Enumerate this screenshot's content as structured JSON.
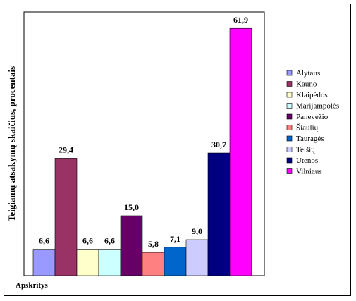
{
  "chart_data": {
    "type": "bar",
    "title": "",
    "ylabel": "Teigiamų atsakymų skaičius, procentais",
    "xlabel": "Apskritys",
    "ylim": [
      0,
      66
    ],
    "grid": false,
    "legend": "right",
    "categories": [
      "Alytaus",
      "Kauno",
      "Klaipėdos",
      "Marijampolės",
      "Panevėžio",
      "Šiaulių",
      "Tauragės",
      "Telšių",
      "Utenos",
      "Vilniaus"
    ],
    "values": [
      6.6,
      29.4,
      6.6,
      6.6,
      15.0,
      5.8,
      7.1,
      9.0,
      30.7,
      61.9
    ],
    "value_labels": [
      "6,6",
      "29,4",
      "6,6",
      "6,6",
      "15,0",
      "5,8",
      "7,1",
      "9,0",
      "30,7",
      "61,9"
    ],
    "colors": [
      "#9999ff",
      "#993366",
      "#ffffcc",
      "#ccffff",
      "#660066",
      "#ff8080",
      "#0066cc",
      "#ccccff",
      "#000080",
      "#ff00ff"
    ]
  }
}
